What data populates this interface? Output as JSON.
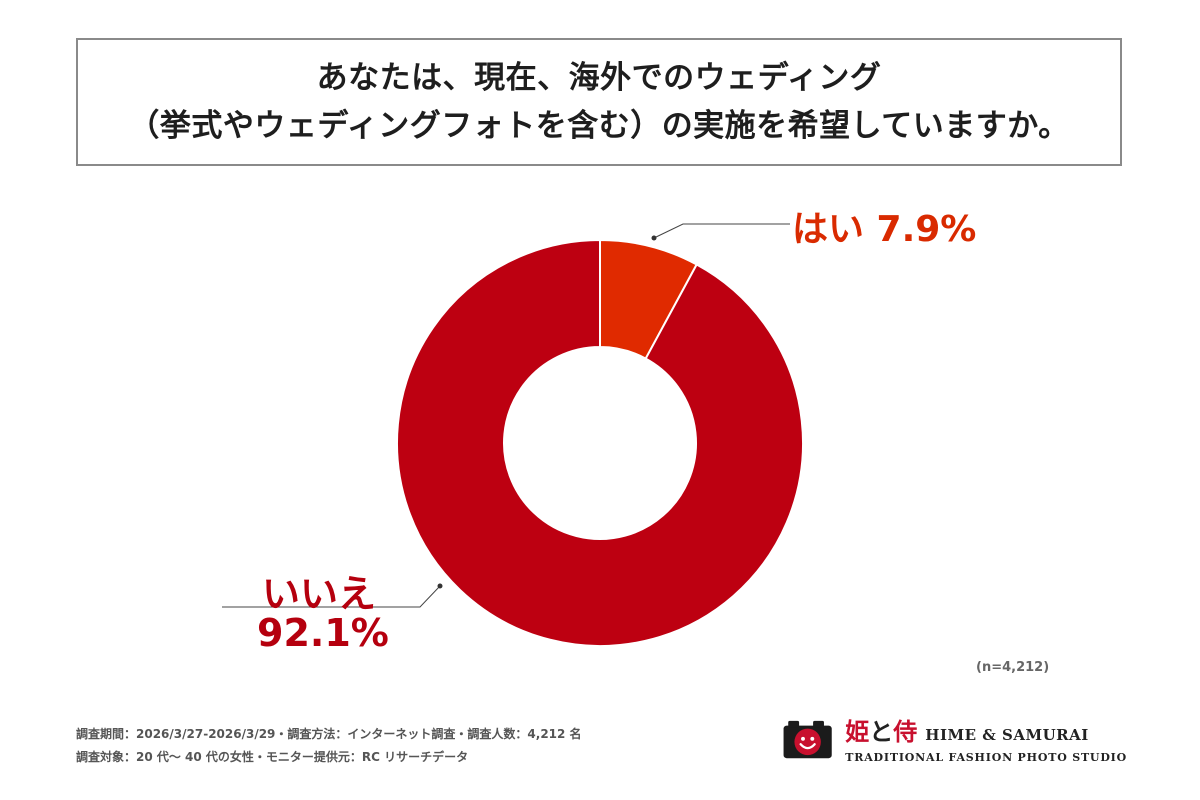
{
  "header": {
    "title_line1": "あなたは、現在、海外でのウェディング",
    "title_line2": "（挙式やウェディングフォトを含む）の実施を希望していますか。"
  },
  "chart_data": {
    "type": "pie",
    "style": "donut",
    "title": "あなたは、現在、海外でのウェディング（挙式やウェディングフォトを含む）の実施を希望していますか。",
    "categories": [
      "はい",
      "いいえ"
    ],
    "values": [
      7.9,
      92.1
    ],
    "unit": "%",
    "labels": [
      "はい 7.9%",
      "いいえ"
    ],
    "value_labels": [
      "7.9%",
      "92.1%"
    ],
    "colors": [
      "#e02a00",
      "#bd0011"
    ],
    "sample_size": "(n=4,212)"
  },
  "labels": {
    "yes": "はい 7.9%",
    "no_name": "いいえ",
    "no_value": "92.1%"
  },
  "footer": {
    "sample": "(n=4,212)",
    "survey_line1": "調査期間：2026/3/27-2026/3/29・調査方法：インターネット調査・調査人数：4,212 名",
    "survey_line2": "調査対象：20 代〜 40 代の女性・モニター提供元：RC リサーチデータ"
  },
  "logo": {
    "jp_hime": "姫",
    "jp_to": "と",
    "jp_samurai": "侍",
    "en_name": "HIME & SAMURAI",
    "subtitle": "TRADITIONAL FASHION PHOTO STUDIO",
    "icon": "camera-smiley-icon"
  }
}
